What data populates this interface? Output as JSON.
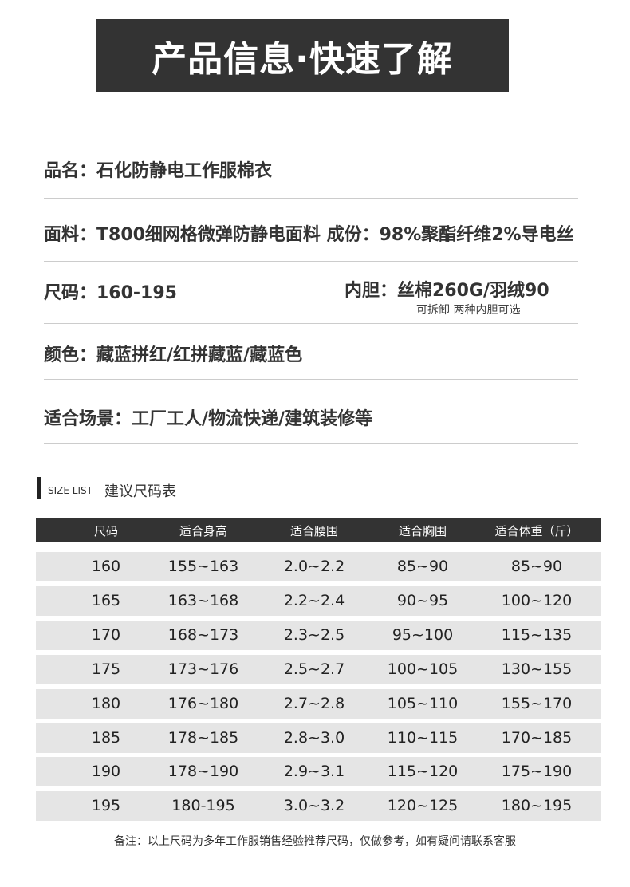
{
  "banner": {
    "title": "产品信息·快速了解"
  },
  "info": {
    "name": "品名：石化防静电工作服棉衣",
    "fabric": "面料：T800细网格微弹防静电面料 成份：98%聚酯纤维2%导电丝",
    "size": "尺码：160-195",
    "lining": "内胆：丝棉260G/羽绒90",
    "lining_note": "可拆卸 两种内胆可选",
    "color": "颜色：藏蓝拼红/红拼藏蓝/藏蓝色",
    "scenes": "适合场景：工厂工人/物流快递/建筑装修等"
  },
  "size_section": {
    "en": "SIZE LIST",
    "cn": "建议尺码表"
  },
  "table": {
    "headers": [
      "尺码",
      "适合身高",
      "适合腰围",
      "适合胸围",
      "适合体重（斤）"
    ],
    "rows": [
      [
        "160",
        "155~163",
        "2.0~2.2",
        "85~90",
        "85~90"
      ],
      [
        "165",
        "163~168",
        "2.2~2.4",
        "90~95",
        "100~120"
      ],
      [
        "170",
        "168~173",
        "2.3~2.5",
        "95~100",
        "115~135"
      ],
      [
        "175",
        "173~176",
        "2.5~2.7",
        "100~105",
        "130~155"
      ],
      [
        "180",
        "176~180",
        "2.7~2.8",
        "105~110",
        "155~170"
      ],
      [
        "185",
        "178~185",
        "2.8~3.0",
        "110~115",
        "170~185"
      ],
      [
        "190",
        "178~190",
        "2.9~3.1",
        "115~120",
        "175~190"
      ],
      [
        "195",
        "180-195",
        "3.0~3.2",
        "120~125",
        "180~195"
      ]
    ]
  },
  "note": "备注：以上尺码为多年工作服销售经验推荐尺码，仅做参考，如有疑问请联系客服"
}
